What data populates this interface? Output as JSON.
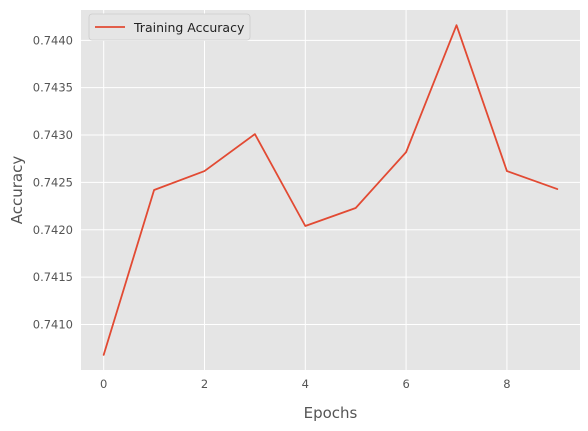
{
  "chart_data": {
    "type": "line",
    "x": [
      0,
      1,
      2,
      3,
      4,
      5,
      6,
      7,
      8,
      9
    ],
    "series": [
      {
        "name": "Training Accuracy",
        "values": [
          0.74068,
          0.74242,
          0.74262,
          0.74301,
          0.74204,
          0.74223,
          0.74282,
          0.74416,
          0.74262,
          0.74243
        ],
        "color": "#e24a33"
      }
    ],
    "xlabel": "Epochs",
    "ylabel": "Accuracy",
    "xlim": [
      -0.45,
      9.45
    ],
    "ylim": [
      0.74052,
      0.74432
    ],
    "xticks": [
      0,
      2,
      4,
      6,
      8
    ],
    "xtick_labels": [
      "0",
      "2",
      "4",
      "6",
      "8"
    ],
    "yticks": [
      0.741,
      0.7415,
      0.742,
      0.7425,
      0.743,
      0.7435,
      0.744
    ],
    "ytick_labels": [
      "0.7410",
      "0.7415",
      "0.7420",
      "0.7425",
      "0.7430",
      "0.7435",
      "0.7440"
    ],
    "grid": true,
    "legend_position": "top-left",
    "style": "ggplot",
    "background_color": "#e5e5e5",
    "grid_color": "#ffffff"
  }
}
